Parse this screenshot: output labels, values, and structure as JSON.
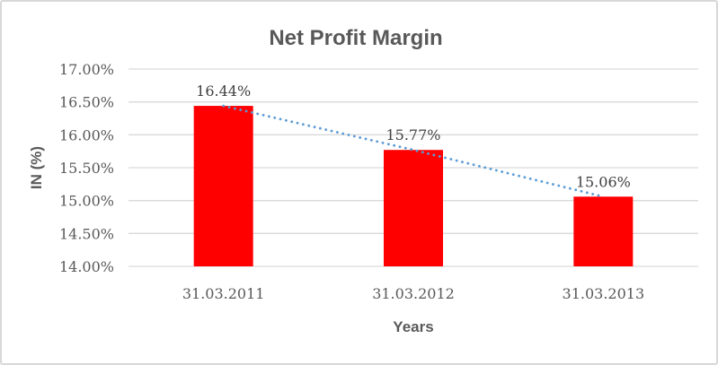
{
  "chart": {
    "background_color": "#FFFFFF",
    "border_color": "#D8D8D8"
  },
  "chart_data": {
    "type": "bar",
    "title": "Net Profit Margin",
    "xlabel": "Years",
    "ylabel": "IN (%)",
    "categories": [
      "31.03.2011",
      "31.03.2012",
      "31.03.2013"
    ],
    "values": [
      16.44,
      15.77,
      15.06
    ],
    "value_labels": [
      "16.44%",
      "15.77%",
      "15.06%"
    ],
    "ylim": [
      14,
      17
    ],
    "ytick_step": 0.5,
    "ytick_labels": [
      "17.00%",
      "16.50%",
      "16.00%",
      "15.50%",
      "15.00%",
      "14.50%",
      "14.00%"
    ],
    "grid": true,
    "legend": false,
    "bar_color": "#FF0000",
    "gridline_color": "#D9D9D9",
    "title_color": "#595959",
    "tick_text_color": "#595959",
    "data_label_color": "#404040",
    "trendline": {
      "style": "dotted",
      "color": "#5B9BD5",
      "through": "bar-tops"
    }
  }
}
